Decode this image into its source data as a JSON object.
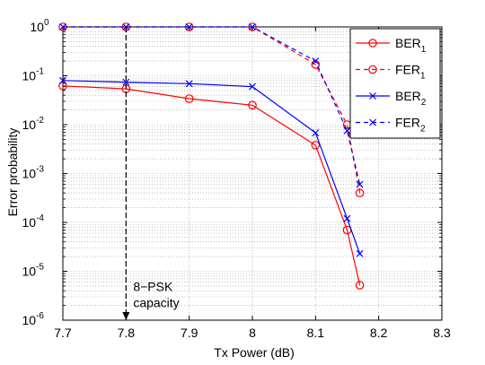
{
  "chart_data": {
    "type": "line",
    "xlabel": "Tx Power (dB)",
    "ylabel": "Error probability",
    "xlim": [
      7.7,
      8.3
    ],
    "ylim": [
      1e-06,
      1
    ],
    "yscale": "log",
    "x_ticks": [
      "7.7",
      "7.8",
      "7.9",
      "8",
      "8.1",
      "8.2",
      "8.3"
    ],
    "y_tick_exponents": [
      "0",
      "-1",
      "-2",
      "-3",
      "-4",
      "-5",
      "-6"
    ],
    "y_tick_base": "10",
    "grid": true,
    "legend_position": "top-right",
    "series": [
      {
        "name": "BER",
        "subscript": "1",
        "color": "#ff0000",
        "line": "solid",
        "marker": "circle",
        "x": [
          7.7,
          7.8,
          7.9,
          8.0,
          8.1,
          8.15,
          8.17
        ],
        "y": [
          0.062,
          0.054,
          0.034,
          0.025,
          0.0038,
          7e-05,
          5.2e-06
        ]
      },
      {
        "name": "FER",
        "subscript": "1",
        "color": "#ff0000",
        "line": "dashed",
        "marker": "circle",
        "x": [
          7.7,
          7.8,
          7.9,
          8.0,
          8.1,
          8.15,
          8.17
        ],
        "y": [
          1.0,
          1.0,
          1.0,
          1.0,
          0.17,
          0.01,
          0.0004
        ]
      },
      {
        "name": "BER",
        "subscript": "2",
        "color": "#0000ff",
        "line": "solid",
        "marker": "x",
        "x": [
          7.7,
          7.8,
          7.9,
          8.0,
          8.1,
          8.15,
          8.17
        ],
        "y": [
          0.08,
          0.074,
          0.069,
          0.06,
          0.0068,
          0.00012,
          2.3e-05
        ]
      },
      {
        "name": "FER",
        "subscript": "2",
        "color": "#0000ff",
        "line": "dashed",
        "marker": "x",
        "x": [
          7.7,
          7.8,
          7.9,
          8.0,
          8.1,
          8.15,
          8.17
        ],
        "y": [
          1.0,
          1.0,
          1.0,
          1.0,
          0.2,
          0.0075,
          0.0006
        ]
      }
    ],
    "annotation": {
      "lines": [
        "8−PSK",
        "capacity"
      ],
      "x": 7.8,
      "y_from": 1.0,
      "y_to": 1e-06
    }
  }
}
